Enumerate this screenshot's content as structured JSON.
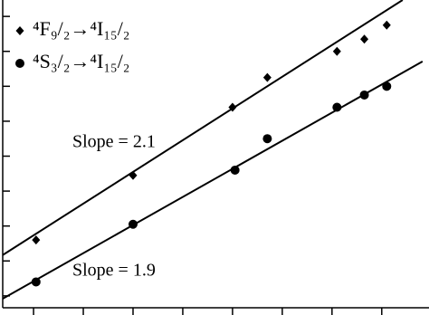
{
  "chart_data": {
    "type": "scatter",
    "series": [
      {
        "name": "⁴F₉/₂→⁴I₁₅/₂",
        "marker": "diamond",
        "color": "#000000",
        "x": [
          0.05,
          2.0,
          4.0,
          4.7,
          6.1,
          6.65,
          7.1
        ],
        "values": [
          1.6,
          3.45,
          5.4,
          6.25,
          7.0,
          7.35,
          7.75
        ]
      },
      {
        "name": "⁴S₃/₂→⁴I₁₅/₂",
        "marker": "circle",
        "color": "#000000",
        "x": [
          0.05,
          2.0,
          4.05,
          4.7,
          6.1,
          6.65,
          7.1
        ],
        "values": [
          0.4,
          2.05,
          3.6,
          4.5,
          5.4,
          5.75,
          6.0
        ]
      }
    ],
    "fits": [
      {
        "x": [
          -0.62,
          7.42
        ],
        "values": [
          1.17,
          8.47
        ],
        "label": "Slope = 2.1"
      },
      {
        "x": [
          -0.62,
          7.82
        ],
        "values": [
          -0.08,
          6.71
        ],
        "label": "Slope = 1.9"
      }
    ],
    "xlim": [
      -0.62,
      7.95
    ],
    "ylim": [
      -0.34,
      8.47
    ],
    "xticks": [
      0,
      1,
      2,
      3,
      4,
      5,
      6,
      7
    ],
    "yticks": [
      0,
      1,
      2,
      3,
      4,
      5,
      6,
      7,
      8
    ],
    "legend": "top-left"
  }
}
